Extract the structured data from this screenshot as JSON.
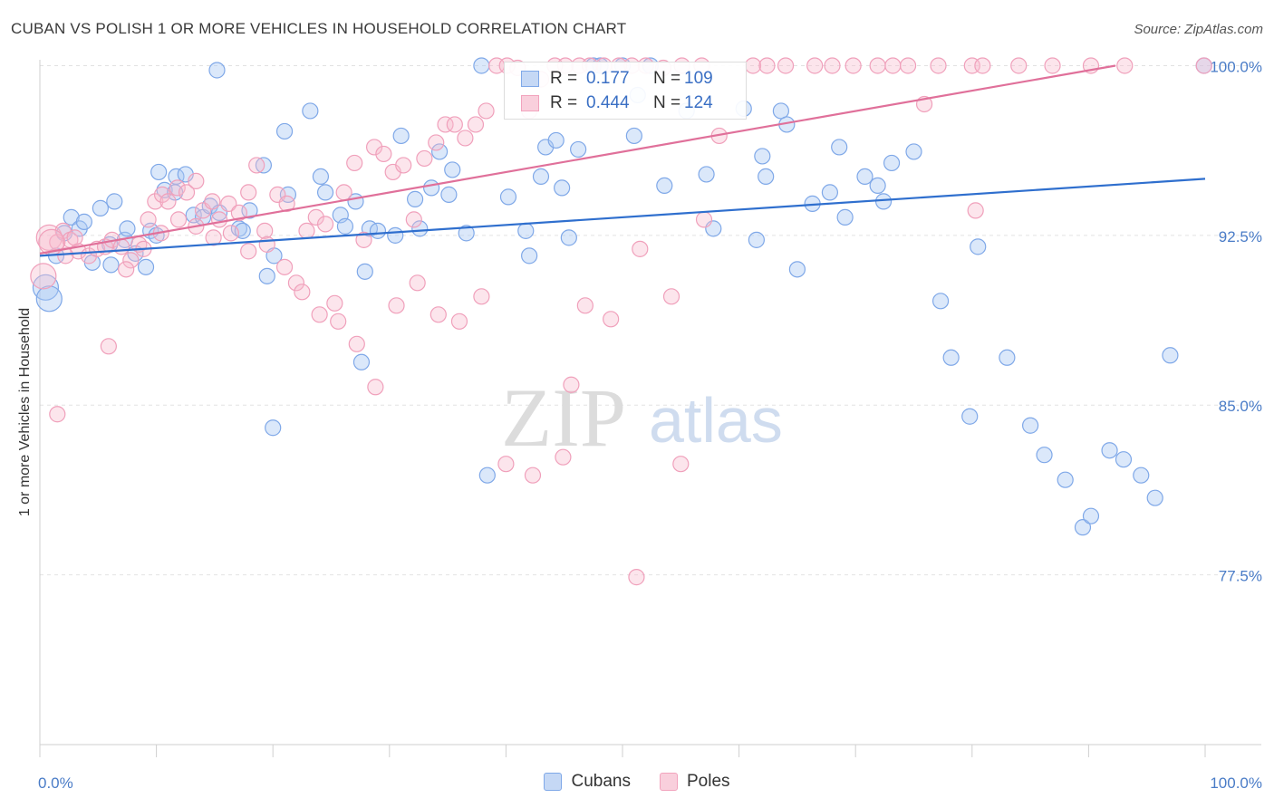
{
  "header": {
    "title": "CUBAN VS POLISH 1 OR MORE VEHICLES IN HOUSEHOLD CORRELATION CHART",
    "source": "Source: ZipAtlas.com"
  },
  "watermark": {
    "zip": "ZIP",
    "atlas": "atlas"
  },
  "legend_top": {
    "rows": [
      {
        "r_label": "R =",
        "r_value": "0.177",
        "n_label": "N =",
        "n_value": "109"
      },
      {
        "r_label": "R =",
        "r_value": "0.444",
        "n_label": "N =",
        "n_value": "124"
      }
    ]
  },
  "chart_data": {
    "type": "scatter",
    "title": "CUBAN VS POLISH 1 OR MORE VEHICLES IN HOUSEHOLD CORRELATION CHART",
    "xlabel": "",
    "ylabel": "1 or more Vehicles in Household",
    "xlim": [
      0,
      100
    ],
    "ylim": [
      70,
      100.5
    ],
    "x_tick_labels": [
      "0.0%",
      "100.0%"
    ],
    "y_ticks": [
      77.5,
      85.0,
      92.5,
      100.0
    ],
    "y_tick_labels": [
      "77.5%",
      "85.0%",
      "92.5%",
      "100.0%"
    ],
    "grid": true,
    "legend_placement": "bottom-center",
    "colors": {
      "cubans": "#7fa8e8",
      "cubans_line": "#2f6fce",
      "poles": "#f2a3bd",
      "poles_line": "#e0709a"
    },
    "series": [
      {
        "name": "Cubans",
        "trend": {
          "x": [
            0,
            100
          ],
          "y": [
            91.6,
            95.0
          ]
        },
        "points": [
          [
            0.5,
            90.2
          ],
          [
            0.8,
            89.7
          ],
          [
            1.4,
            91.6
          ],
          [
            2.1,
            92.6
          ],
          [
            2.7,
            93.3
          ],
          [
            3.4,
            92.8
          ],
          [
            3.8,
            93.1
          ],
          [
            4.5,
            91.3
          ],
          [
            5.2,
            93.7
          ],
          [
            6.1,
            91.2
          ],
          [
            6.0,
            92.1
          ],
          [
            6.4,
            94.0
          ],
          [
            7.3,
            92.3
          ],
          [
            7.5,
            92.8
          ],
          [
            8.2,
            91.7
          ],
          [
            9.1,
            91.1
          ],
          [
            9.5,
            92.7
          ],
          [
            10.0,
            92.5
          ],
          [
            10.2,
            95.3
          ],
          [
            10.7,
            94.5
          ],
          [
            11.6,
            94.4
          ],
          [
            11.7,
            95.1
          ],
          [
            12.5,
            95.2
          ],
          [
            13.2,
            93.4
          ],
          [
            14.0,
            93.3
          ],
          [
            14.6,
            93.8
          ],
          [
            15.4,
            93.5
          ],
          [
            17.1,
            92.8
          ],
          [
            17.4,
            92.7
          ],
          [
            18.0,
            93.6
          ],
          [
            19.2,
            95.6
          ],
          [
            19.5,
            90.7
          ],
          [
            20.1,
            91.6
          ],
          [
            21.0,
            97.1
          ],
          [
            21.3,
            94.3
          ],
          [
            23.2,
            98.0
          ],
          [
            24.1,
            95.1
          ],
          [
            24.5,
            94.4
          ],
          [
            25.8,
            93.4
          ],
          [
            26.2,
            92.9
          ],
          [
            27.1,
            94.0
          ],
          [
            27.9,
            90.9
          ],
          [
            28.3,
            92.8
          ],
          [
            29.0,
            92.7
          ],
          [
            30.5,
            92.5
          ],
          [
            31.0,
            96.9
          ],
          [
            32.2,
            94.1
          ],
          [
            32.6,
            92.8
          ],
          [
            33.6,
            94.6
          ],
          [
            34.3,
            96.2
          ],
          [
            35.1,
            94.3
          ],
          [
            35.4,
            95.4
          ],
          [
            36.6,
            92.6
          ],
          [
            37.9,
            100.0
          ],
          [
            40.2,
            94.2
          ],
          [
            41.7,
            92.7
          ],
          [
            42.0,
            91.6
          ],
          [
            43.0,
            95.1
          ],
          [
            43.4,
            96.4
          ],
          [
            44.3,
            96.7
          ],
          [
            44.8,
            94.6
          ],
          [
            45.4,
            92.4
          ],
          [
            46.2,
            96.3
          ],
          [
            47.5,
            100.0
          ],
          [
            48.1,
            100.0
          ],
          [
            50.0,
            100.0
          ],
          [
            51.0,
            96.9
          ],
          [
            51.3,
            98.7
          ],
          [
            52.4,
            100.0
          ],
          [
            53.6,
            94.7
          ],
          [
            55.5,
            98.0
          ],
          [
            57.2,
            95.2
          ],
          [
            57.8,
            92.8
          ],
          [
            60.4,
            98.1
          ],
          [
            61.5,
            92.3
          ],
          [
            62.0,
            96.0
          ],
          [
            62.3,
            95.1
          ],
          [
            63.6,
            98.0
          ],
          [
            64.1,
            97.4
          ],
          [
            65.0,
            91.0
          ],
          [
            66.3,
            93.9
          ],
          [
            67.8,
            94.4
          ],
          [
            68.6,
            96.4
          ],
          [
            69.1,
            93.3
          ],
          [
            70.8,
            95.1
          ],
          [
            71.9,
            94.7
          ],
          [
            72.4,
            94.0
          ],
          [
            73.1,
            95.7
          ],
          [
            75.0,
            96.2
          ],
          [
            77.3,
            89.6
          ],
          [
            78.2,
            87.1
          ],
          [
            79.8,
            84.5
          ],
          [
            80.5,
            92.0
          ],
          [
            83.0,
            87.1
          ],
          [
            85.0,
            84.1
          ],
          [
            86.2,
            82.8
          ],
          [
            88.0,
            81.7
          ],
          [
            89.5,
            79.6
          ],
          [
            90.2,
            80.1
          ],
          [
            91.8,
            83.0
          ],
          [
            93.0,
            82.6
          ],
          [
            94.5,
            81.9
          ],
          [
            95.7,
            80.9
          ],
          [
            97.0,
            87.2
          ],
          [
            99.9,
            100.0
          ],
          [
            15.2,
            99.8
          ],
          [
            20.0,
            84.0
          ],
          [
            27.6,
            86.9
          ],
          [
            38.4,
            81.9
          ]
        ]
      },
      {
        "name": "Poles",
        "trend": {
          "x": [
            0,
            92.3
          ],
          "y": [
            91.7,
            100.0
          ]
        },
        "points": [
          [
            0.3,
            90.7
          ],
          [
            0.8,
            92.4
          ],
          [
            1.5,
            92.2
          ],
          [
            2.0,
            92.7
          ],
          [
            2.6,
            92.3
          ],
          [
            3.3,
            91.8
          ],
          [
            4.2,
            91.6
          ],
          [
            4.9,
            91.9
          ],
          [
            5.6,
            92.0
          ],
          [
            6.2,
            92.3
          ],
          [
            7.0,
            92.0
          ],
          [
            7.8,
            91.4
          ],
          [
            8.5,
            92.1
          ],
          [
            9.3,
            93.2
          ],
          [
            9.9,
            94.0
          ],
          [
            10.5,
            94.3
          ],
          [
            11.0,
            94.0
          ],
          [
            11.8,
            94.6
          ],
          [
            12.6,
            94.4
          ],
          [
            13.4,
            94.9
          ],
          [
            14.0,
            93.6
          ],
          [
            14.8,
            94.0
          ],
          [
            15.4,
            93.2
          ],
          [
            16.2,
            93.9
          ],
          [
            17.1,
            93.5
          ],
          [
            17.9,
            94.4
          ],
          [
            18.6,
            95.6
          ],
          [
            19.3,
            92.7
          ],
          [
            20.4,
            94.3
          ],
          [
            21.2,
            93.9
          ],
          [
            22.0,
            90.4
          ],
          [
            22.9,
            92.7
          ],
          [
            23.7,
            93.3
          ],
          [
            24.5,
            93.0
          ],
          [
            25.3,
            89.5
          ],
          [
            26.1,
            94.4
          ],
          [
            27.0,
            95.7
          ],
          [
            27.8,
            92.3
          ],
          [
            28.7,
            96.4
          ],
          [
            29.5,
            96.1
          ],
          [
            30.3,
            95.3
          ],
          [
            31.2,
            95.6
          ],
          [
            32.1,
            93.2
          ],
          [
            33.0,
            95.9
          ],
          [
            34.0,
            96.6
          ],
          [
            34.8,
            97.4
          ],
          [
            35.6,
            97.4
          ],
          [
            36.5,
            96.8
          ],
          [
            37.4,
            97.4
          ],
          [
            38.3,
            98.0
          ],
          [
            39.2,
            100.0
          ],
          [
            40.1,
            100.0
          ],
          [
            41.0,
            99.9
          ],
          [
            42.0,
            98.0
          ],
          [
            43.0,
            99.4
          ],
          [
            44.2,
            100.0
          ],
          [
            45.1,
            100.0
          ],
          [
            46.3,
            100.0
          ],
          [
            47.2,
            100.0
          ],
          [
            48.4,
            100.0
          ],
          [
            49.7,
            100.0
          ],
          [
            50.8,
            100.0
          ],
          [
            52.0,
            100.0
          ],
          [
            53.5,
            99.9
          ],
          [
            55.1,
            100.0
          ],
          [
            56.8,
            100.0
          ],
          [
            58.3,
            96.9
          ],
          [
            61.2,
            100.0
          ],
          [
            62.4,
            100.0
          ],
          [
            64.0,
            100.0
          ],
          [
            66.5,
            100.0
          ],
          [
            68.0,
            100.0
          ],
          [
            69.8,
            100.0
          ],
          [
            71.9,
            100.0
          ],
          [
            73.2,
            100.0
          ],
          [
            74.5,
            100.0
          ],
          [
            77.1,
            100.0
          ],
          [
            80.0,
            100.0
          ],
          [
            80.9,
            100.0
          ],
          [
            84.0,
            100.0
          ],
          [
            86.9,
            100.0
          ],
          [
            90.2,
            100.0
          ],
          [
            93.1,
            100.0
          ],
          [
            99.9,
            100.0
          ],
          [
            75.9,
            98.3
          ],
          [
            80.3,
            93.6
          ],
          [
            57.0,
            93.2
          ],
          [
            54.2,
            89.8
          ],
          [
            51.5,
            91.9
          ],
          [
            49.0,
            88.8
          ],
          [
            46.8,
            89.4
          ],
          [
            44.9,
            82.7
          ],
          [
            42.3,
            81.9
          ],
          [
            40.0,
            82.4
          ],
          [
            37.9,
            89.8
          ],
          [
            36.0,
            88.7
          ],
          [
            34.2,
            89.0
          ],
          [
            32.4,
            90.4
          ],
          [
            30.6,
            89.4
          ],
          [
            28.8,
            85.8
          ],
          [
            27.2,
            87.7
          ],
          [
            25.6,
            88.7
          ],
          [
            24.0,
            89.0
          ],
          [
            22.5,
            90.0
          ],
          [
            21.0,
            91.1
          ],
          [
            19.5,
            92.1
          ],
          [
            17.9,
            91.8
          ],
          [
            16.4,
            92.6
          ],
          [
            14.9,
            92.4
          ],
          [
            13.4,
            92.9
          ],
          [
            11.9,
            93.2
          ],
          [
            10.4,
            92.6
          ],
          [
            8.9,
            91.9
          ],
          [
            7.4,
            91.0
          ],
          [
            5.9,
            87.6
          ],
          [
            1.5,
            84.6
          ],
          [
            1.0,
            92.2
          ],
          [
            2.2,
            91.6
          ],
          [
            3.0,
            92.4
          ],
          [
            55.0,
            82.4
          ],
          [
            51.2,
            77.4
          ],
          [
            45.6,
            85.9
          ]
        ]
      }
    ]
  },
  "legend_bottom": {
    "items": [
      {
        "label": "Cubans"
      },
      {
        "label": "Poles"
      }
    ]
  }
}
